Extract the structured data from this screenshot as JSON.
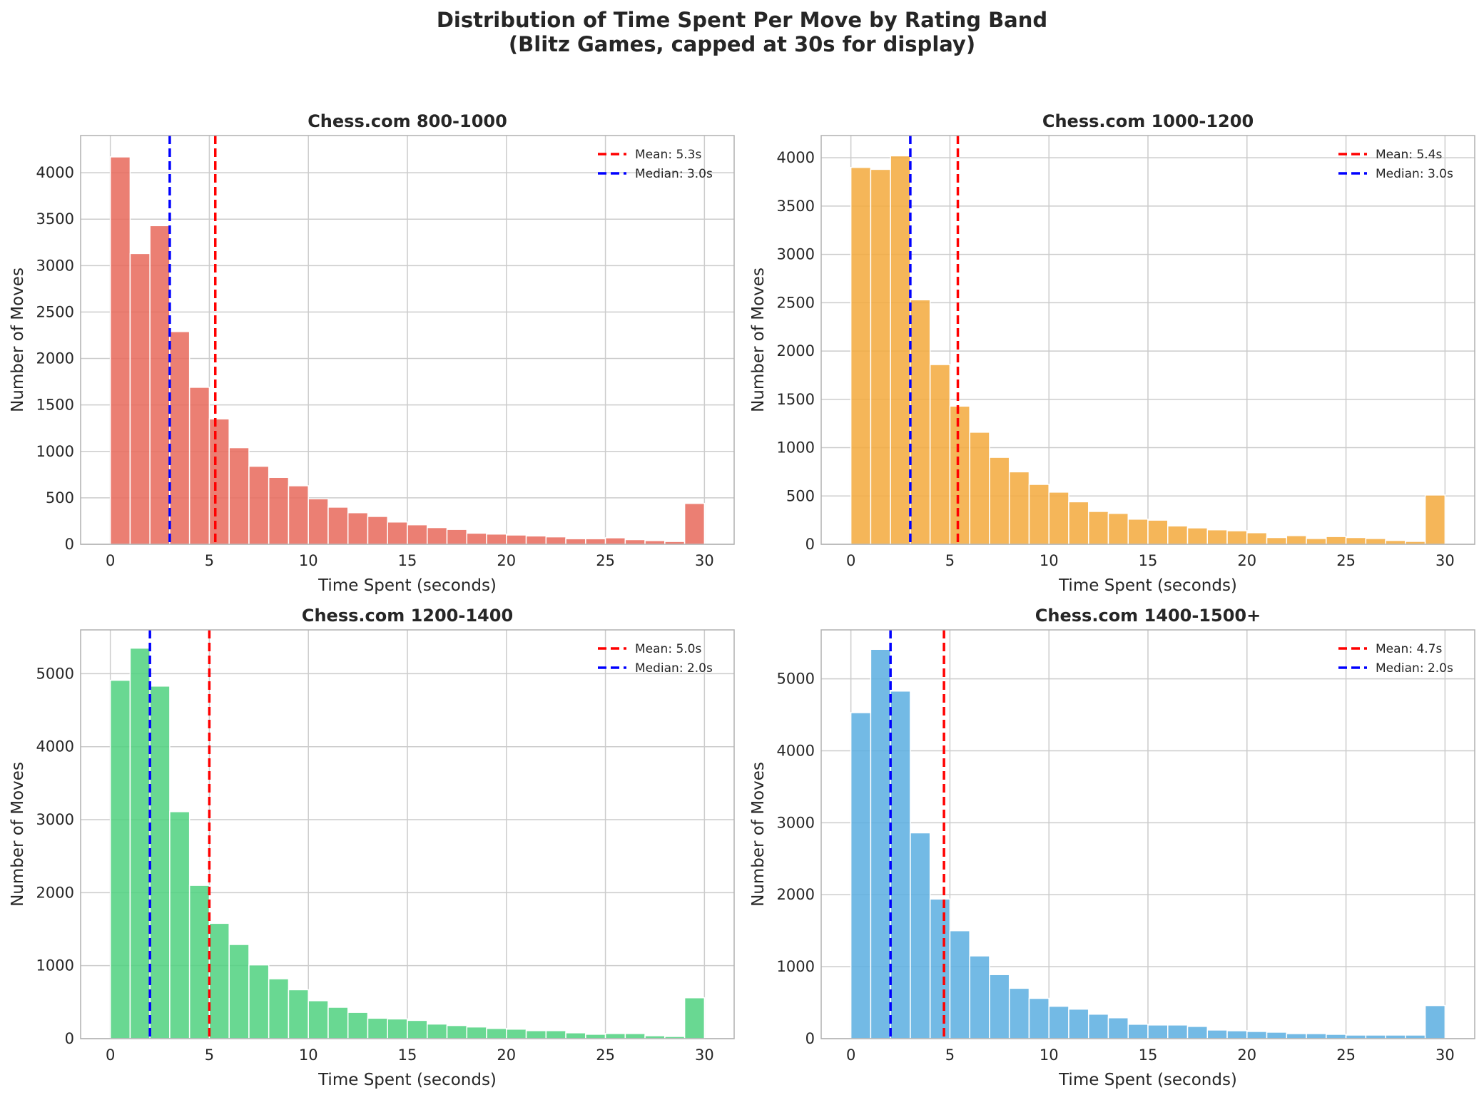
{
  "figure": {
    "title_line1": "Distribution of Time Spent Per Move by Rating Band",
    "title_line2": "(Blitz Games, capped at 30s for display)"
  },
  "colors": {
    "mean_line": "#ff0000",
    "median_line": "#0000ff",
    "grid": "#cccccc",
    "axes_edge": "#b0b0b0",
    "text": "#262626",
    "bar_edge": "#ffffff"
  },
  "chart_data": [
    {
      "type": "bar",
      "title": "Chess.com 800-1000",
      "xlabel": "Time Spent (seconds)",
      "ylabel": "Number of Moves",
      "bar_color": "#e8685a",
      "bin_width": 1,
      "bin_starts": [
        0,
        1,
        2,
        3,
        4,
        5,
        6,
        7,
        8,
        9,
        10,
        11,
        12,
        13,
        14,
        15,
        16,
        17,
        18,
        19,
        20,
        21,
        22,
        23,
        24,
        25,
        26,
        27,
        28,
        29
      ],
      "values": [
        4170,
        3130,
        3430,
        2290,
        1690,
        1350,
        1040,
        840,
        720,
        630,
        490,
        400,
        340,
        300,
        240,
        210,
        180,
        160,
        120,
        110,
        100,
        90,
        80,
        60,
        60,
        70,
        50,
        40,
        30,
        440
      ],
      "xlim": [
        -1.5,
        31.5
      ],
      "ylim": [
        0,
        4400
      ],
      "xticks": [
        0,
        5,
        10,
        15,
        20,
        25,
        30
      ],
      "yticks": [
        0,
        500,
        1000,
        1500,
        2000,
        2500,
        3000,
        3500,
        4000
      ],
      "mean": 5.3,
      "mean_label": "Mean: 5.3s",
      "median": 3.0,
      "median_label": "Median: 3.0s",
      "grid": true,
      "legend": "top-right"
    },
    {
      "type": "bar",
      "title": "Chess.com 1000-1200",
      "xlabel": "Time Spent (seconds)",
      "ylabel": "Number of Moves",
      "bar_color": "#f3a93c",
      "bin_width": 1,
      "bin_starts": [
        0,
        1,
        2,
        3,
        4,
        5,
        6,
        7,
        8,
        9,
        10,
        11,
        12,
        13,
        14,
        15,
        16,
        17,
        18,
        19,
        20,
        21,
        22,
        23,
        24,
        25,
        26,
        27,
        28,
        29
      ],
      "values": [
        3900,
        3880,
        4020,
        2530,
        1860,
        1430,
        1160,
        900,
        750,
        620,
        540,
        440,
        340,
        320,
        260,
        250,
        190,
        170,
        150,
        140,
        120,
        70,
        90,
        60,
        80,
        70,
        60,
        40,
        30,
        510
      ],
      "xlim": [
        -1.5,
        31.5
      ],
      "ylim": [
        0,
        4230
      ],
      "xticks": [
        0,
        5,
        10,
        15,
        20,
        25,
        30
      ],
      "yticks": [
        0,
        500,
        1000,
        1500,
        2000,
        2500,
        3000,
        3500,
        4000
      ],
      "mean": 5.4,
      "mean_label": "Mean: 5.4s",
      "median": 3.0,
      "median_label": "Median: 3.0s",
      "grid": true,
      "legend": "top-right"
    },
    {
      "type": "bar",
      "title": "Chess.com 1200-1400",
      "xlabel": "Time Spent (seconds)",
      "ylabel": "Number of Moves",
      "bar_color": "#4fd17f",
      "bin_width": 1,
      "bin_starts": [
        0,
        1,
        2,
        3,
        4,
        5,
        6,
        7,
        8,
        9,
        10,
        11,
        12,
        13,
        14,
        15,
        16,
        17,
        18,
        19,
        20,
        21,
        22,
        23,
        24,
        25,
        26,
        27,
        28,
        29
      ],
      "values": [
        4910,
        5350,
        4830,
        3110,
        2100,
        1580,
        1290,
        1010,
        820,
        670,
        520,
        430,
        360,
        280,
        270,
        250,
        200,
        180,
        160,
        140,
        130,
        110,
        110,
        80,
        60,
        70,
        70,
        40,
        30,
        560
      ],
      "xlim": [
        -1.5,
        31.5
      ],
      "ylim": [
        0,
        5600
      ],
      "xticks": [
        0,
        5,
        10,
        15,
        20,
        25,
        30
      ],
      "yticks": [
        0,
        1000,
        2000,
        3000,
        4000,
        5000
      ],
      "mean": 5.0,
      "mean_label": "Mean: 5.0s",
      "median": 2.0,
      "median_label": "Median: 2.0s",
      "grid": true,
      "legend": "top-right"
    },
    {
      "type": "bar",
      "title": "Chess.com 1400-1500+",
      "xlabel": "Time Spent (seconds)",
      "ylabel": "Number of Moves",
      "bar_color": "#5aaee0",
      "bin_width": 1,
      "bin_starts": [
        0,
        1,
        2,
        3,
        4,
        5,
        6,
        7,
        8,
        9,
        10,
        11,
        12,
        13,
        14,
        15,
        16,
        17,
        18,
        19,
        20,
        21,
        22,
        23,
        24,
        25,
        26,
        27,
        28,
        29
      ],
      "values": [
        4530,
        5410,
        4830,
        2860,
        1940,
        1500,
        1150,
        890,
        700,
        560,
        450,
        410,
        340,
        290,
        200,
        190,
        190,
        170,
        120,
        110,
        100,
        90,
        70,
        70,
        60,
        50,
        50,
        50,
        50,
        460
      ],
      "xlim": [
        -1.5,
        31.5
      ],
      "ylim": [
        0,
        5680
      ],
      "xticks": [
        0,
        5,
        10,
        15,
        20,
        25,
        30
      ],
      "yticks": [
        0,
        1000,
        2000,
        3000,
        4000,
        5000
      ],
      "mean": 4.7,
      "mean_label": "Mean: 4.7s",
      "median": 2.0,
      "median_label": "Median: 2.0s",
      "grid": true,
      "legend": "top-right"
    }
  ]
}
